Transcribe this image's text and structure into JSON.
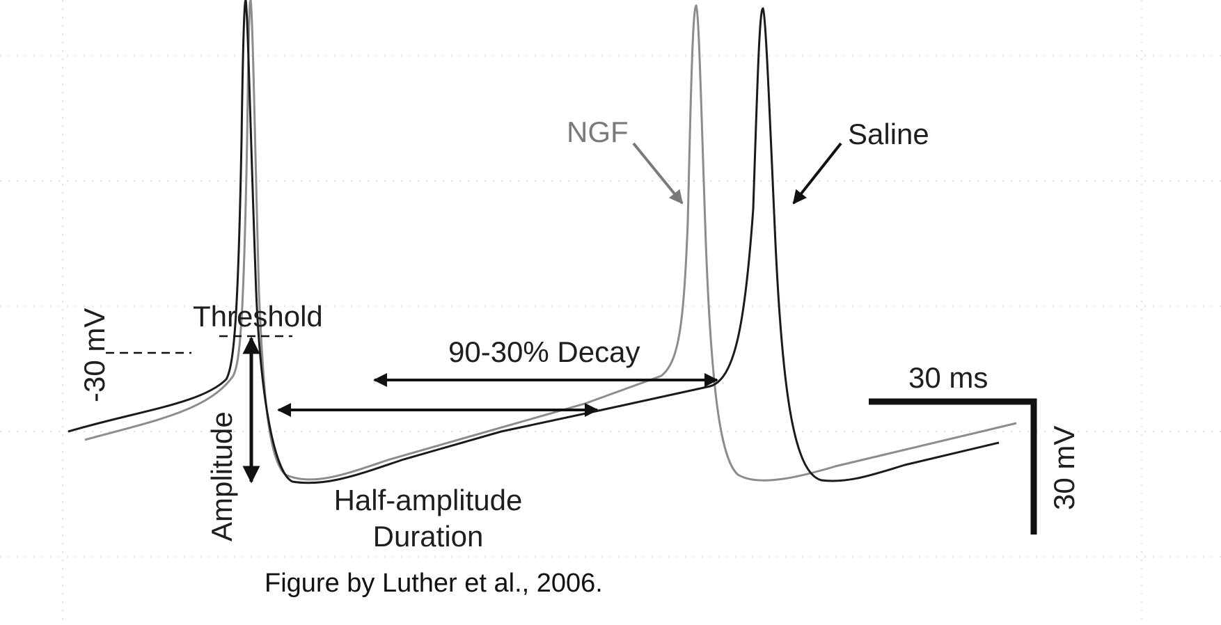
{
  "figure": {
    "labels": {
      "ngf": "NGF",
      "saline": "Saline",
      "threshold": "Threshold",
      "minus30mv": "-30 mV",
      "decay": "90-30% Decay",
      "half_amplitude_line1": "Half-amplitude",
      "half_amplitude_line2": "Duration",
      "amplitude": "Amplitude",
      "scale_time": "30 ms",
      "scale_voltage": "30 mV"
    },
    "caption": "Figure by Luther et al., 2006.",
    "colors": {
      "saline_trace": "#1a1a1a",
      "ngf_trace": "#8c8c8c",
      "ngf_label": "#7a7a7a",
      "annotation": "#111111",
      "grid": "#d6d6d6"
    }
  }
}
